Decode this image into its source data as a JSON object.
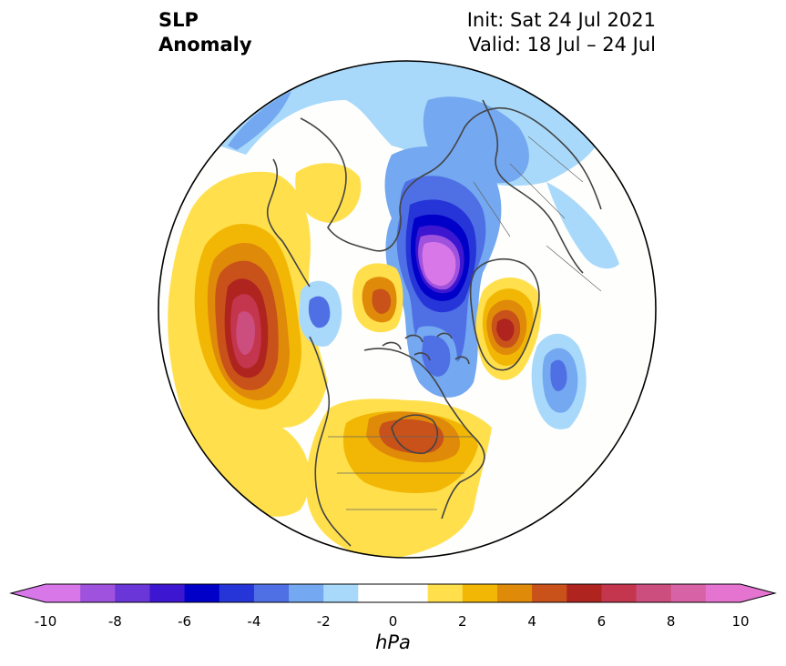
{
  "title": {
    "left_line1": "SLP",
    "left_line2": "Anomaly",
    "right_line1": "Init: Sat 24 Jul 2021",
    "right_line2": "Valid: 18 Jul – 24 Jul"
  },
  "colorbar": {
    "unit": "hPa",
    "tick_labels": [
      "-10",
      "-8",
      "-6",
      "-4",
      "-2",
      "0",
      "2",
      "4",
      "6",
      "8",
      "10"
    ],
    "levels": [
      -10,
      -9,
      -8,
      -7,
      -6,
      -5,
      -4,
      -3,
      -2,
      -1,
      1,
      2,
      3,
      4,
      5,
      6,
      7,
      8,
      9,
      10
    ],
    "colors": [
      "#d877e8",
      "#9f52dd",
      "#6b36d8",
      "#3c16d0",
      "#0000c8",
      "#2635d8",
      "#4f6fe5",
      "#74a8f0",
      "#a9d9fa",
      "#ffffff",
      "#ffe04c",
      "#f2b705",
      "#e08a0a",
      "#c8521a",
      "#b02420",
      "#c4364e",
      "#cc4e7e",
      "#d862a6",
      "#e474d0"
    ],
    "extend_low_color": "#d877e8",
    "extend_high_color": "#e474d0"
  },
  "map": {
    "projection": "north-polar-stereographic",
    "center": "North Pole",
    "anomaly_features": [
      {
        "region": "North Pacific / Aleutians",
        "sign": "positive",
        "peak_hPa": 9
      },
      {
        "region": "Arctic Ocean near North Pole",
        "sign": "negative",
        "peak_hPa": -10
      },
      {
        "region": "Greenland",
        "sign": "positive",
        "peak_hPa": 6
      },
      {
        "region": "East Siberian Sea",
        "sign": "positive",
        "peak_hPa": 5
      },
      {
        "region": "Hudson Bay / Eastern Canada",
        "sign": "positive",
        "peak_hPa": 4
      },
      {
        "region": "North Atlantic",
        "sign": "negative",
        "peak_hPa": -4
      },
      {
        "region": "Eurasia",
        "sign": "negative",
        "peak_hPa": -3
      }
    ],
    "colors": {
      "land_outline": "#444444",
      "rim": "#000000"
    }
  }
}
